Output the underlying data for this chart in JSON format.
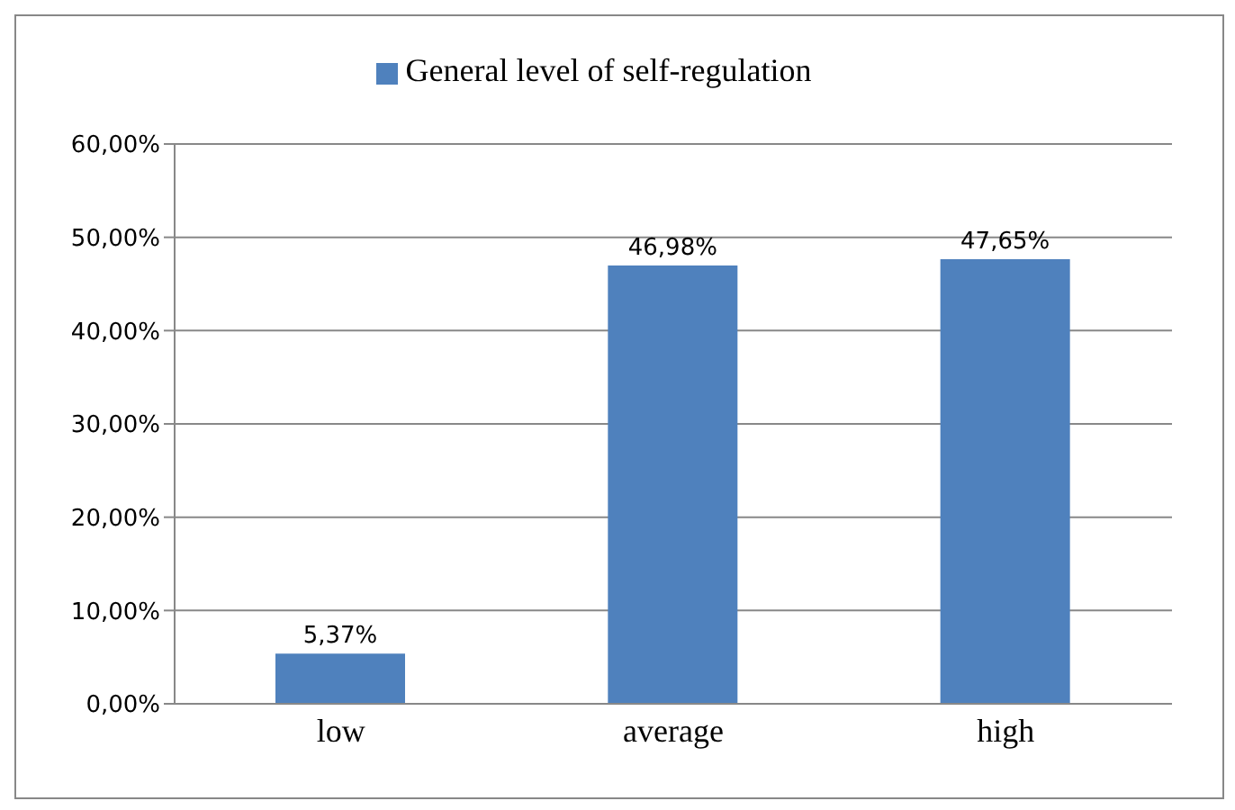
{
  "chart_data": {
    "type": "bar",
    "categories": [
      "low",
      "average",
      "high"
    ],
    "series": [
      {
        "name": "General level of self-regulation",
        "color": "#4f81bd",
        "values": [
          5.37,
          46.98,
          47.65
        ],
        "value_labels": [
          "5,37%",
          "46,98%",
          "47,65%"
        ]
      }
    ],
    "ylim": [
      0,
      60
    ],
    "yticks": [
      {
        "value": 0,
        "label": "0,00%"
      },
      {
        "value": 10,
        "label": "10,00%"
      },
      {
        "value": 20,
        "label": "20,00%"
      },
      {
        "value": 30,
        "label": "30,00%"
      },
      {
        "value": 40,
        "label": "40,00%"
      },
      {
        "value": 50,
        "label": "50,00%"
      },
      {
        "value": 60,
        "label": "60,00%"
      }
    ],
    "grid": "y",
    "legend": "top"
  }
}
